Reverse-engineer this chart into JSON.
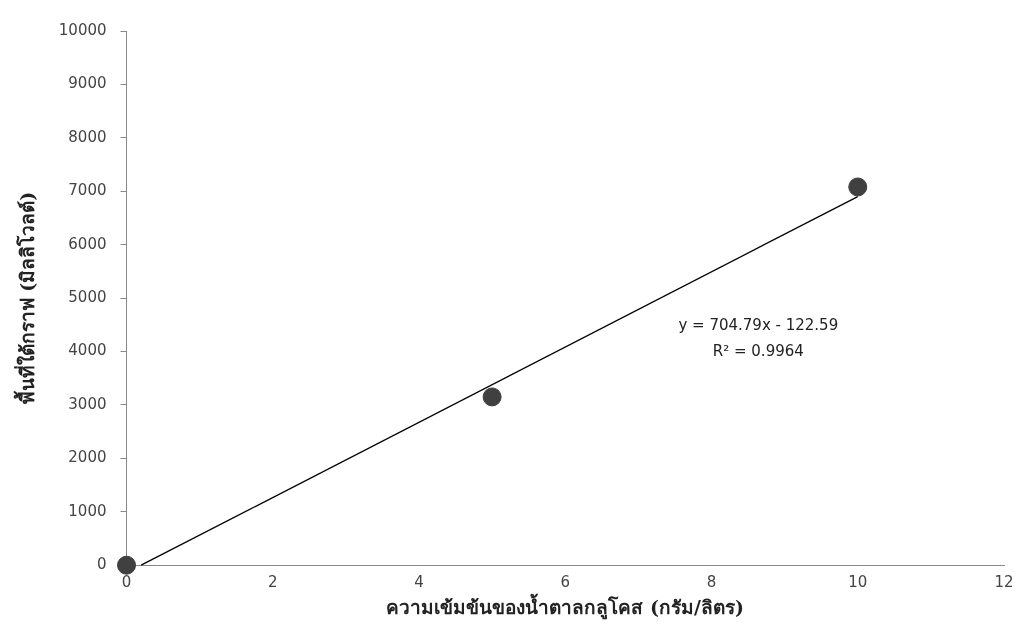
{
  "chart_data": {
    "type": "scatter",
    "xlabel": "ความเข้มข้นของน้ำตาลกลูโคส (กรัม/ลิตร)",
    "ylabel": "พื้นที่ใต้กราฟ (มิลลิโวลต์)",
    "x": [
      0,
      5,
      10
    ],
    "series": [
      {
        "color": "#404040",
        "values": [
          0,
          3150,
          7080
        ]
      },
      {
        "type": "line",
        "color": "#000000",
        "marker": "none",
        "x": [
          0.2,
          10
        ],
        "values": [
          0,
          6900
        ]
      }
    ],
    "xlim": [
      0,
      12
    ],
    "xticks": [
      0,
      2,
      4,
      6,
      8,
      10,
      12
    ],
    "ylim": [
      0,
      10000
    ],
    "yticks": [
      0,
      1000,
      2000,
      3000,
      4000,
      5000,
      6000,
      7000,
      8000,
      9000,
      10000
    ],
    "annotations": [
      "y = 704.79x - 122.59",
      "R² = 0.9964"
    ],
    "grid": false,
    "legend": false,
    "marker": "circle",
    "line_style": "solid"
  }
}
